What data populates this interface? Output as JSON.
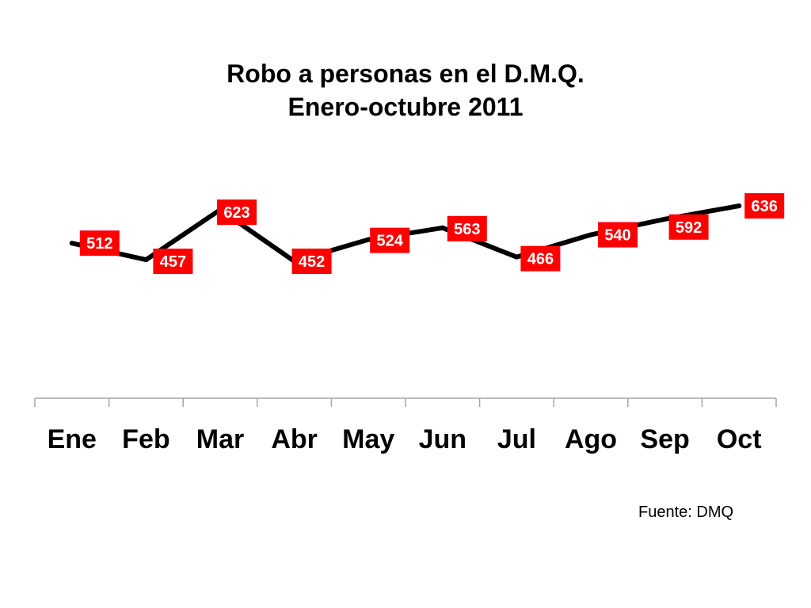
{
  "chart_data": {
    "type": "line",
    "title": "Robo a personas en el D.M.Q.",
    "subtitle": "Enero-octubre 2011",
    "categories": [
      "Ene",
      "Feb",
      "Mar",
      "Abr",
      "May",
      "Jun",
      "Jul",
      "Ago",
      "Sep",
      "Oct"
    ],
    "series": [
      {
        "values": [
          512,
          457,
          623,
          452,
          524,
          563,
          466,
          540,
          592,
          636
        ]
      }
    ],
    "data_labels": true,
    "y_axis_visible": false,
    "grid": false,
    "legend": "none",
    "colors": {
      "line": "#000000",
      "label_bg": "#ff0000",
      "label_text": "#ffffff",
      "axis": "#a6a6a6"
    }
  },
  "footer": {
    "source": "Fuente: DMQ"
  }
}
